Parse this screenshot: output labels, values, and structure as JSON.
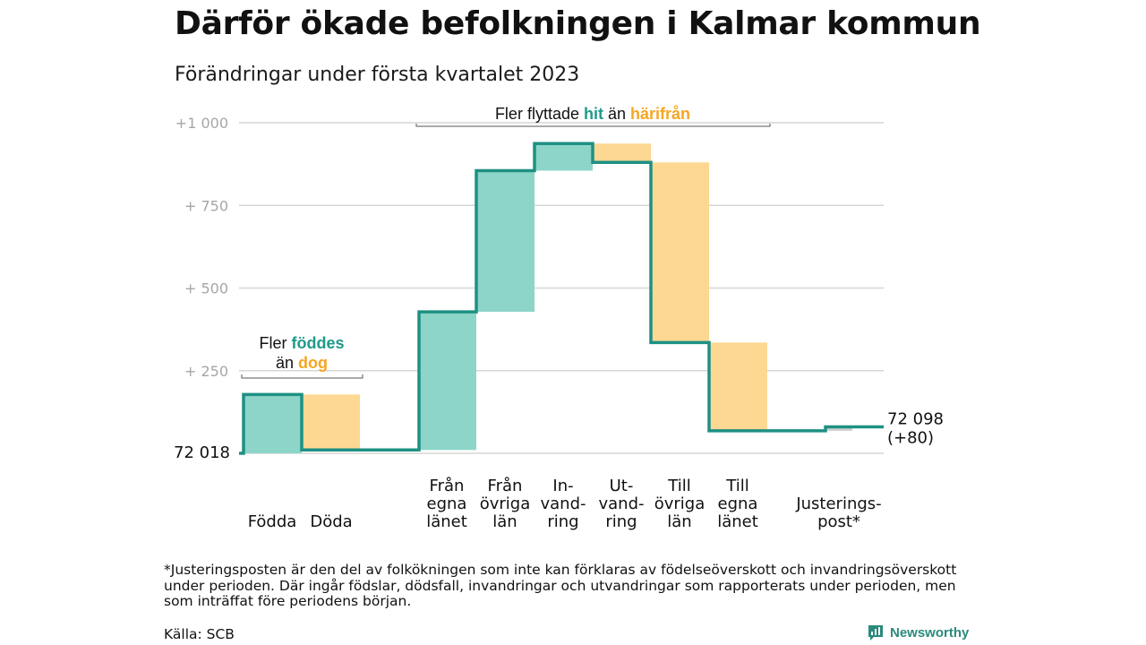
{
  "title": "Därför ökade befolkningen i Kalmar kommun",
  "subtitle": "Förändringar under första kvartalet 2023",
  "footnote": "*Justeringsposten är den del av folkökningen som inte kan förklaras av födelseöverskott och invandringsöverskott under perioden. Där ingår födslar, dödsfall, invandringar och utvandringar som rapporterats under perioden, men som inträffat före periodens början.",
  "source": "Källa: SCB",
  "brand": "Newsworthy",
  "colors": {
    "increase": "#8dd5c8",
    "decrease": "#fcd893",
    "line": "#1e9183",
    "hit": "#1e9a8a",
    "harifran": "#f5a623",
    "grid": "#d6d6d6",
    "axis_text": "#a6a6a6",
    "adjustment": "#cfcfcf"
  },
  "chart_data": {
    "type": "waterfall",
    "start_label": "72 018",
    "end_label": "72 098",
    "end_change": "(+80)",
    "y_ticks": [
      {
        "value": 250,
        "label": "+ 250"
      },
      {
        "value": 500,
        "label": "+ 500"
      },
      {
        "value": 750,
        "label": "+ 750"
      },
      {
        "value": 1000,
        "label": "+1 000"
      }
    ],
    "ylim": [
      0,
      1000
    ],
    "steps": [
      {
        "label": "Födda",
        "from": 0,
        "to": 178
      },
      {
        "label": "Döda",
        "from": 178,
        "to": 10
      },
      {
        "label": "Från egna länet",
        "lines": [
          "Från",
          "egna",
          "länet"
        ],
        "from": 10,
        "to": 428
      },
      {
        "label": "Från övriga län",
        "lines": [
          "Från",
          "övriga",
          "län"
        ],
        "from": 428,
        "to": 855
      },
      {
        "label": "In-vandring",
        "lines": [
          "In-",
          "vand-",
          "ring"
        ],
        "from": 855,
        "to": 937
      },
      {
        "label": "Ut-vandring",
        "lines": [
          "Ut-",
          "vand-",
          "ring"
        ],
        "from": 937,
        "to": 880
      },
      {
        "label": "Till övriga län",
        "lines": [
          "Till",
          "övriga",
          "län"
        ],
        "from": 880,
        "to": 335
      },
      {
        "label": "Till egna länet",
        "lines": [
          "Till",
          "egna",
          "länet"
        ],
        "from": 335,
        "to": 68
      },
      {
        "label": "Justerings-post*",
        "lines": [
          "Justerings-",
          "post*"
        ],
        "from": 68,
        "to": 80
      }
    ],
    "annotations": [
      {
        "parts": [
          {
            "text": "Fler ",
            "color": "dark"
          },
          {
            "text": "föddes",
            "color": "hit",
            "bold": true
          }
        ],
        "parts2": [
          {
            "text": "än ",
            "color": "dark"
          },
          {
            "text": "dog",
            "color": "harifran",
            "bold": true
          }
        ]
      },
      {
        "parts": [
          {
            "text": "Fler flyttade ",
            "color": "dark"
          },
          {
            "text": "hit",
            "color": "hit",
            "bold": true
          },
          {
            "text": " än ",
            "color": "dark"
          },
          {
            "text": "härifrån",
            "color": "harifran",
            "bold": true
          }
        ]
      }
    ]
  }
}
